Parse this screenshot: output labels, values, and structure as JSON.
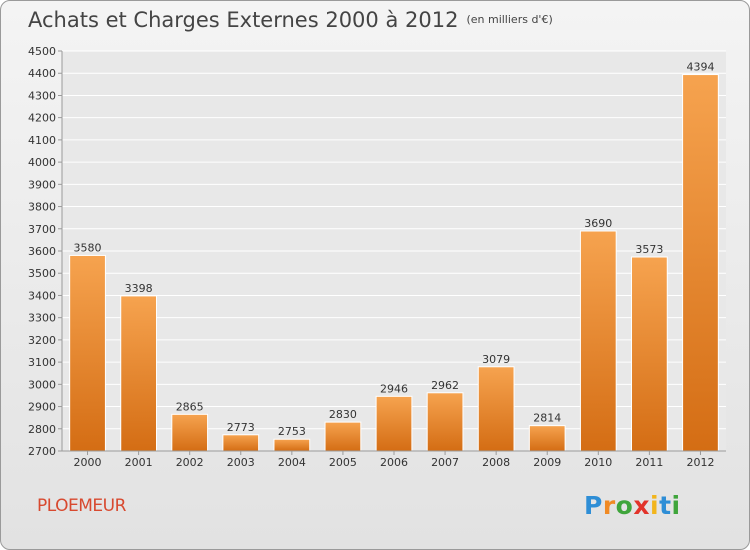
{
  "header": {
    "title": "Achats et Charges Externes 2000 à 2012",
    "unit": "(en milliers d'€)"
  },
  "footer": {
    "city": "PLOEMEUR",
    "brand_letters": [
      "P",
      "r",
      "o",
      "x",
      "i",
      "t",
      "i"
    ],
    "brand_colors": [
      "#2e8ed6",
      "#f08a24",
      "#3fa53b",
      "#e2332a",
      "#f2b51c",
      "#2e8ed6",
      "#3fa53b"
    ]
  },
  "colors": {
    "bar_light": "#f6a34f",
    "bar_dark": "#d46d14",
    "bar_edge": "#ffffff",
    "grid": "#ffffff",
    "text": "#333333"
  },
  "chart_data": {
    "type": "bar",
    "categories": [
      "2000",
      "2001",
      "2002",
      "2003",
      "2004",
      "2005",
      "2006",
      "2007",
      "2008",
      "2009",
      "2010",
      "2011",
      "2012"
    ],
    "values": [
      3580,
      3398,
      2865,
      2773,
      2753,
      2830,
      2946,
      2962,
      3079,
      2814,
      3690,
      3573,
      4394
    ],
    "data_labels": [
      "3580",
      "3398",
      "2865",
      "2773",
      "2753",
      "2830",
      "2946",
      "2962",
      "3079",
      "2814",
      "3690",
      "3573",
      "4394"
    ],
    "ylim": [
      2700,
      4500
    ],
    "yticks": [
      2700,
      2800,
      2900,
      3000,
      3100,
      3200,
      3300,
      3400,
      3500,
      3600,
      3700,
      3800,
      3900,
      4000,
      4100,
      4200,
      4300,
      4400,
      4500
    ],
    "grid": true
  }
}
